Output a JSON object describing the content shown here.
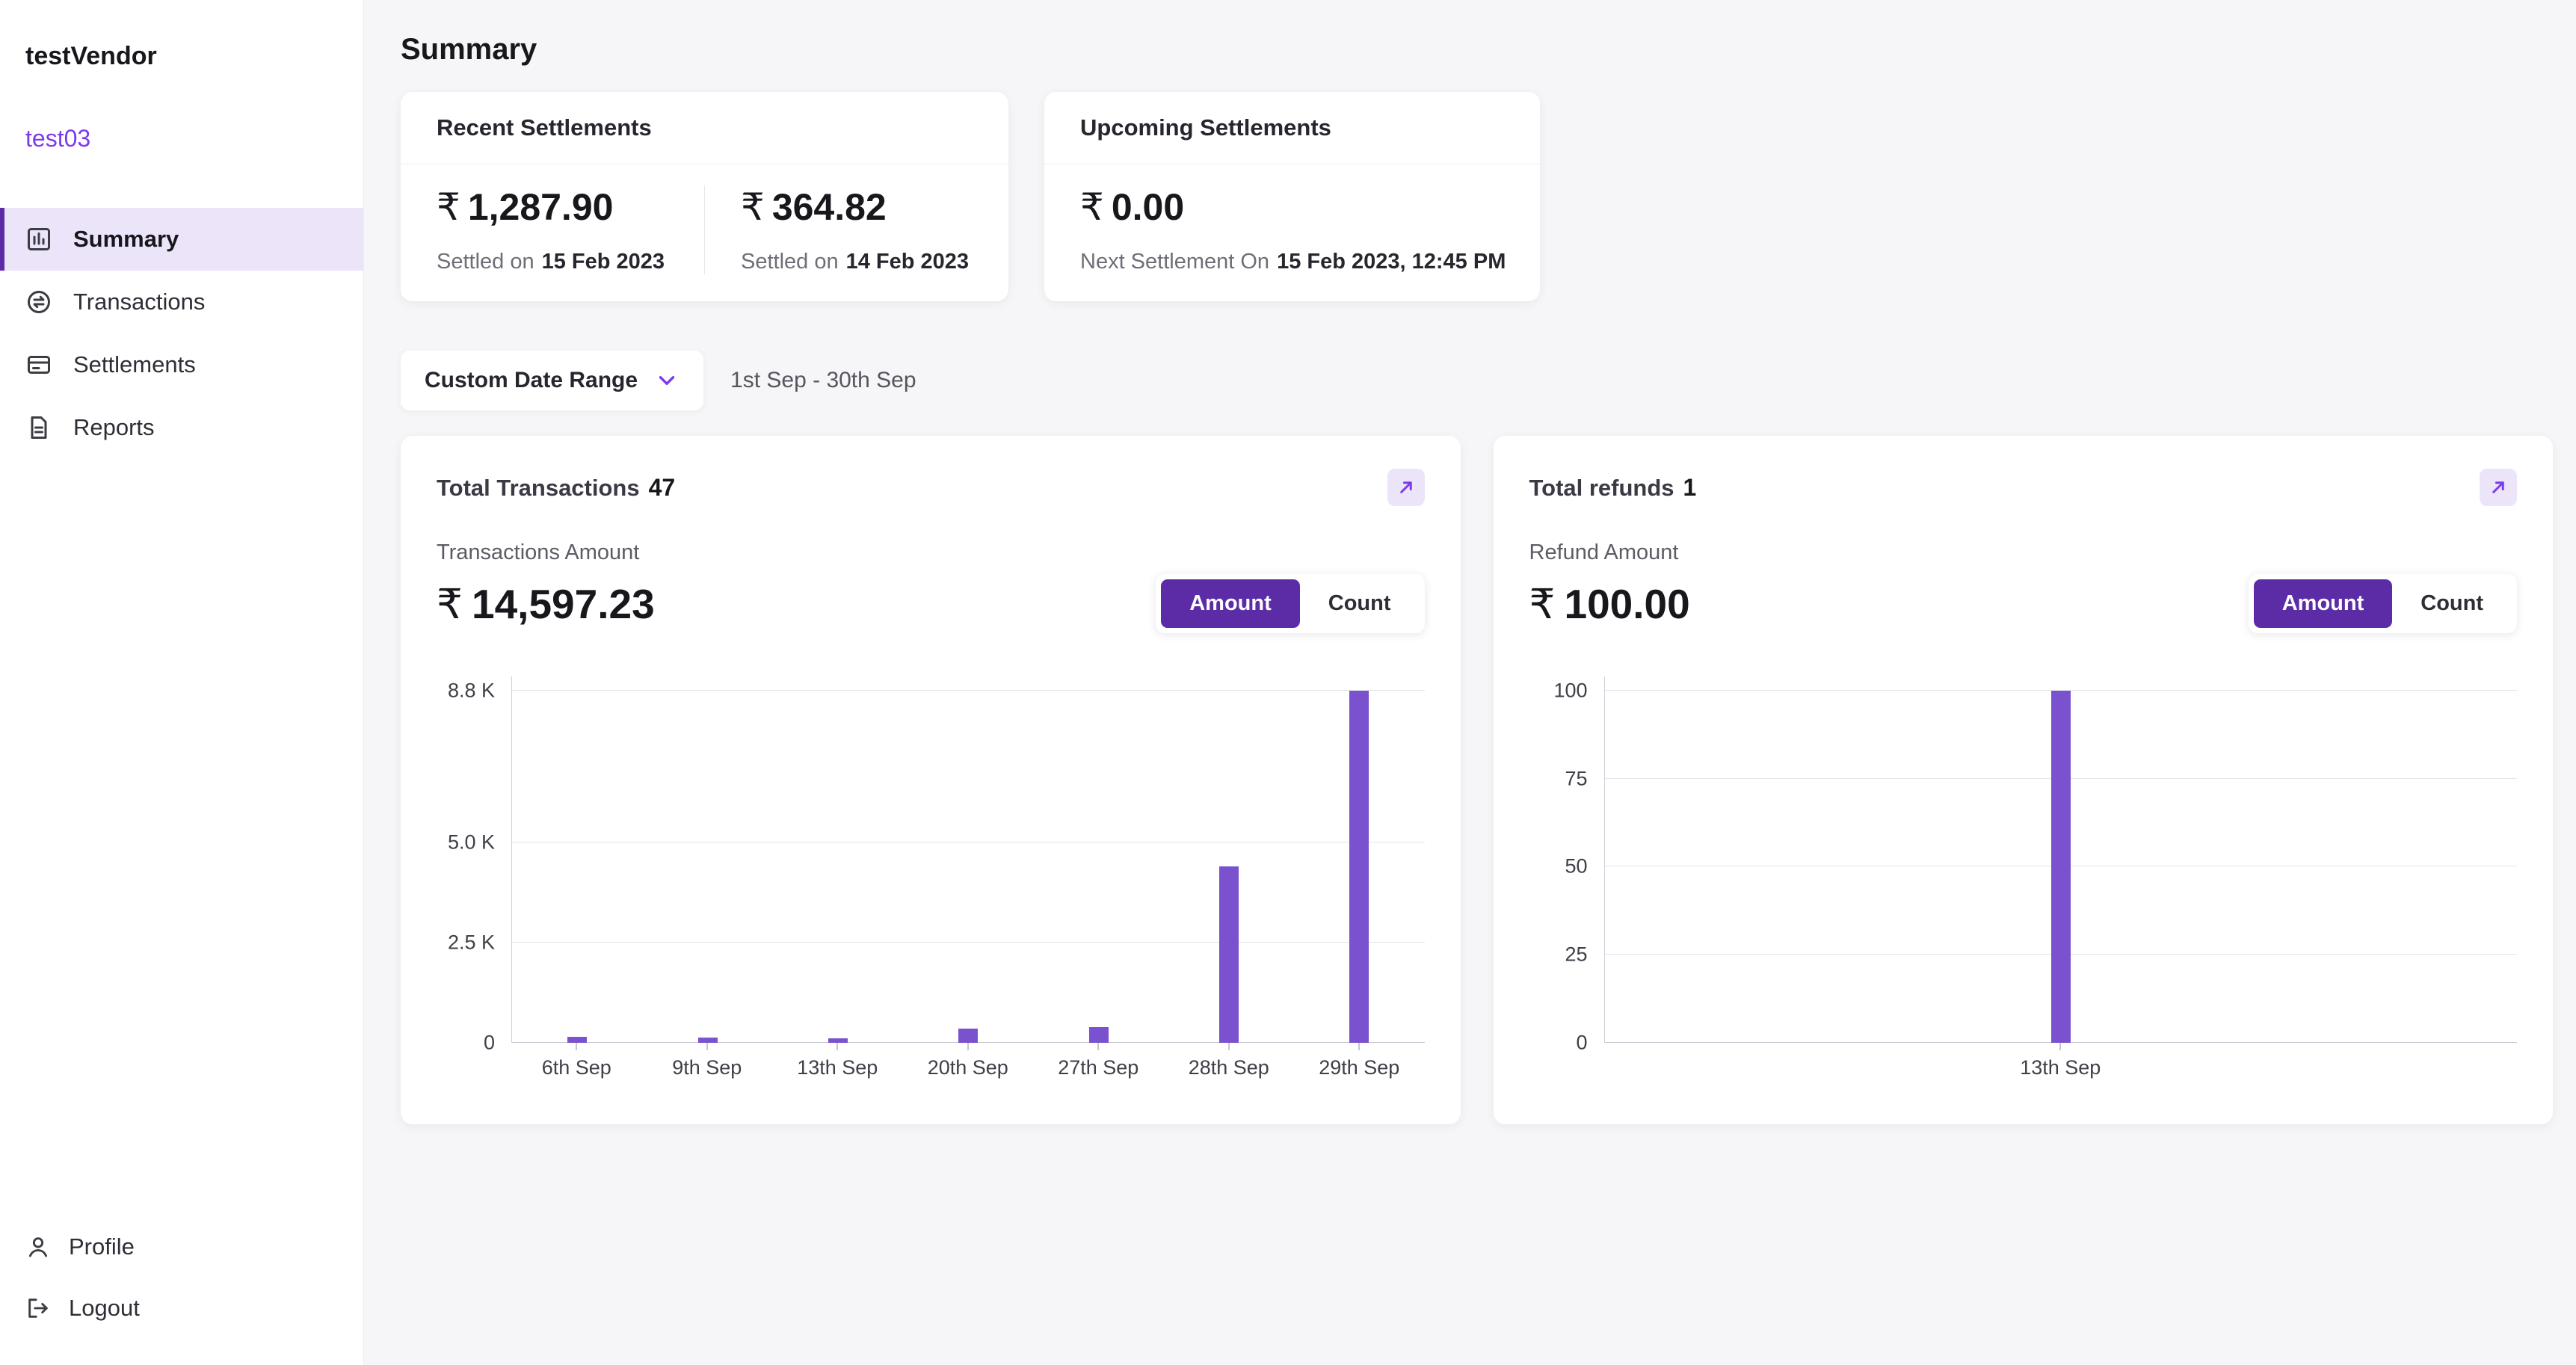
{
  "colors": {
    "accent": "#5b2ca6",
    "accent_text": "#7c3aed",
    "accent_light": "#ece4f9",
    "bar": "#7a52cf"
  },
  "sidebar": {
    "vendor_name": "testVendor",
    "account_name": "test03",
    "items": [
      {
        "label": "Summary",
        "icon": "bar-chart-icon",
        "active": true
      },
      {
        "label": "Transactions",
        "icon": "swap-icon",
        "active": false
      },
      {
        "label": "Settlements",
        "icon": "card-icon",
        "active": false
      },
      {
        "label": "Reports",
        "icon": "document-icon",
        "active": false
      }
    ],
    "footer_items": [
      {
        "label": "Profile",
        "icon": "person-icon"
      },
      {
        "label": "Logout",
        "icon": "logout-icon"
      }
    ]
  },
  "header": {
    "title": "Summary"
  },
  "recent_settlements": {
    "title": "Recent Settlements",
    "entries": [
      {
        "currency": "₹",
        "amount": "1,287.90",
        "label": "Settled on",
        "date": "15 Feb 2023"
      },
      {
        "currency": "₹",
        "amount": "364.82",
        "label": "Settled on",
        "date": "14 Feb 2023"
      }
    ]
  },
  "upcoming_settlements": {
    "title": "Upcoming Settlements",
    "currency": "₹",
    "amount": "0.00",
    "label": "Next Settlement On",
    "date": "15 Feb 2023, 12:45 PM"
  },
  "date_filter": {
    "button_label": "Custom Date Range",
    "range_text": "1st Sep - 30th Sep"
  },
  "transactions_card": {
    "title": "Total Transactions",
    "count": "47",
    "amount_label": "Transactions Amount",
    "currency": "₹",
    "amount": "14,597.23",
    "toggle": {
      "amount": "Amount",
      "count": "Count",
      "active": "Amount"
    }
  },
  "refunds_card": {
    "title": "Total refunds",
    "count": "1",
    "amount_label": "Refund Amount",
    "currency": "₹",
    "amount": "100.00",
    "toggle": {
      "amount": "Amount",
      "count": "Count",
      "active": "Amount"
    }
  },
  "chart_data": [
    {
      "type": "bar",
      "title": "Total Transactions",
      "categories": [
        "6th Sep",
        "9th Sep",
        "13th Sep",
        "20th Sep",
        "27th Sep",
        "28th Sep",
        "29th Sep"
      ],
      "values": [
        150,
        140,
        120,
        350,
        400,
        4400,
        8800
      ],
      "yticks": [
        0,
        2500,
        5000,
        8800
      ],
      "ytick_labels": [
        "0",
        "2.5 K",
        "5.0 K",
        "8.8 K"
      ],
      "ylim": [
        0,
        9150
      ],
      "xlabel": "",
      "ylabel": "",
      "grid": true,
      "legend": false,
      "bar_color": "#7a52cf"
    },
    {
      "type": "bar",
      "title": "Total refunds",
      "categories": [
        "13th Sep"
      ],
      "values": [
        100
      ],
      "yticks": [
        0,
        25,
        50,
        75,
        100
      ],
      "ytick_labels": [
        "0",
        "25",
        "50",
        "75",
        "100"
      ],
      "ylim": [
        0,
        104
      ],
      "xlabel": "",
      "ylabel": "",
      "grid": true,
      "legend": false,
      "bar_color": "#7a52cf"
    }
  ]
}
